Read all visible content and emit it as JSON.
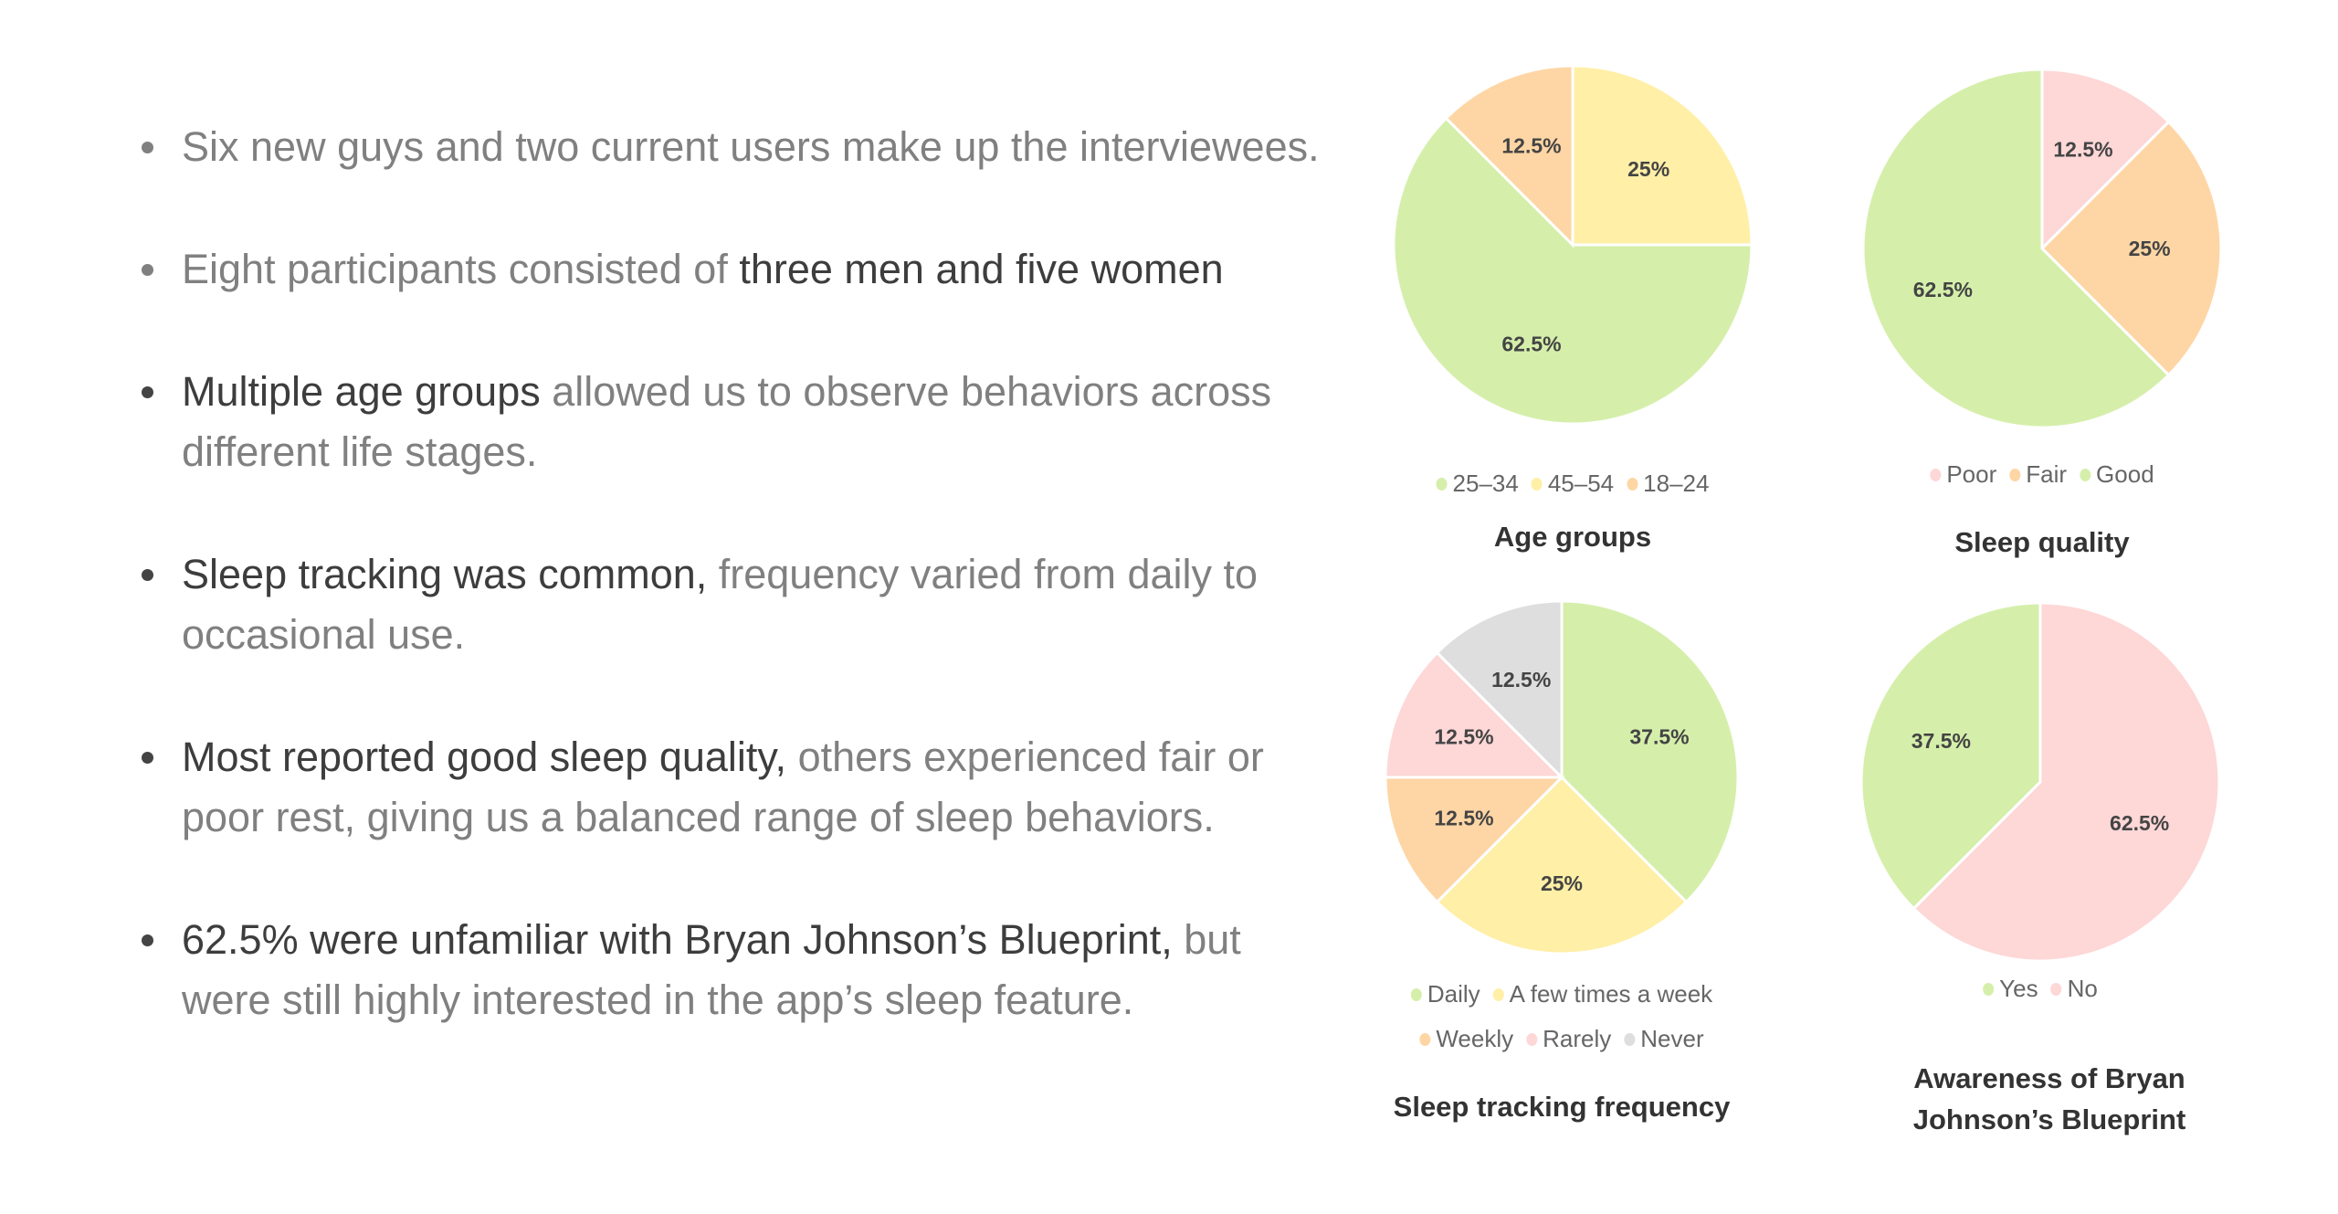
{
  "bullets": [
    {
      "segments": [
        {
          "text": "Six new guys and two current users make up the interviewees.",
          "em": false
        }
      ]
    },
    {
      "segments": [
        {
          "text": "Eight participants consisted of ",
          "em": false
        },
        {
          "text": "three men and five women",
          "em": true
        }
      ]
    },
    {
      "segments": [
        {
          "text": "Multiple age groups",
          "em": true
        },
        {
          "text": " allowed us to observe behaviors across different life stages.",
          "em": false
        }
      ]
    },
    {
      "segments": [
        {
          "text": "Sleep tracking was common,",
          "em": true
        },
        {
          "text": " frequency varied from daily to occasional use.",
          "em": false
        }
      ]
    },
    {
      "segments": [
        {
          "text": "Most reported good sleep quality,",
          "em": true
        },
        {
          "text": " others experienced fair or poor rest, giving us a balanced range of sleep behaviors.",
          "em": false
        }
      ]
    },
    {
      "segments": [
        {
          "text": "62.5% were unfamiliar with Bryan Johnson’s Blueprint,",
          "em": true
        },
        {
          "text": " but were still highly interested in the app’s sleep feature.",
          "em": false
        }
      ]
    }
  ],
  "colors": {
    "green": "#d5efab",
    "yellow": "#ffefa7",
    "orange": "#fed6a5",
    "pink": "#fed7d7",
    "gray": "#dedede"
  },
  "chart_data": [
    {
      "type": "pie",
      "title": "Age groups",
      "slices": [
        {
          "label": "45–54",
          "value": 25,
          "text": "25%",
          "color": "#ffefa7"
        },
        {
          "label": "25–34",
          "value": 62.5,
          "text": "62.5%",
          "color": "#d5efab"
        },
        {
          "label": "18–24",
          "value": 12.5,
          "text": "12.5%",
          "color": "#fed6a5"
        }
      ],
      "legend": [
        [
          "25–34",
          "45–54",
          "18–24"
        ]
      ]
    },
    {
      "type": "pie",
      "title": "Sleep quality",
      "slices": [
        {
          "label": "Poor",
          "value": 12.5,
          "text": "12.5%",
          "color": "#fed7d7"
        },
        {
          "label": "Fair",
          "value": 25,
          "text": "25%",
          "color": "#fed6a5"
        },
        {
          "label": "Good",
          "value": 62.5,
          "text": "62.5%",
          "color": "#d5efab"
        }
      ],
      "legend": [
        [
          "Poor",
          "Fair",
          "Good"
        ]
      ]
    },
    {
      "type": "pie",
      "title": "Sleep tracking frequency",
      "slices": [
        {
          "label": "Daily",
          "value": 37.5,
          "text": "37.5%",
          "color": "#d5efab"
        },
        {
          "label": "A few times a week",
          "value": 25,
          "text": "25%",
          "color": "#ffefa7"
        },
        {
          "label": "Weekly",
          "value": 12.5,
          "text": "12.5%",
          "color": "#fed6a5"
        },
        {
          "label": "Rarely",
          "value": 12.5,
          "text": "12.5%",
          "color": "#fed7d7"
        },
        {
          "label": "Never",
          "value": 12.5,
          "text": "12.5%",
          "color": "#dedede"
        }
      ],
      "legend": [
        [
          "Daily",
          "A few times a week"
        ],
        [
          "Weekly",
          "Rarely",
          "Never"
        ]
      ]
    },
    {
      "type": "pie",
      "title": "Awareness of Bryan Johnson’s Blueprint",
      "title_lines": [
        "Awareness of Bryan",
        "Johnson’s Blueprint"
      ],
      "slices": [
        {
          "label": "No",
          "value": 62.5,
          "text": "62.5%",
          "color": "#fed7d7"
        },
        {
          "label": "Yes",
          "value": 37.5,
          "text": "37.5%",
          "color": "#d5efab"
        }
      ],
      "legend": [
        [
          "Yes",
          "No"
        ]
      ]
    }
  ]
}
